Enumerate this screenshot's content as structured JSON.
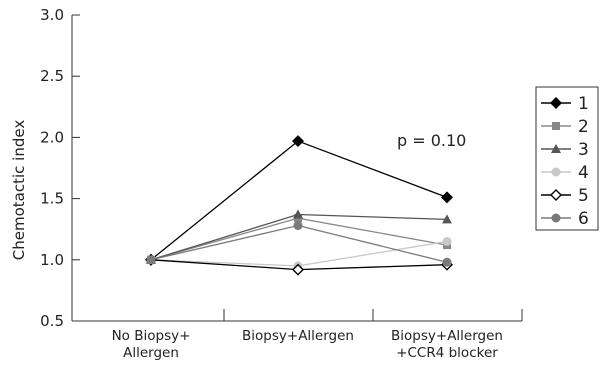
{
  "chart_data": {
    "type": "line",
    "ylabel": "Chemotactic index",
    "xlabel": "",
    "ylim": [
      0.5,
      3.0
    ],
    "yticks": [
      "0.5",
      "1.0",
      "1.5",
      "2.0",
      "2.5",
      "3.0"
    ],
    "categories": [
      [
        "No Biopsy+",
        "Allergen"
      ],
      [
        "Biopsy+Allergen"
      ],
      [
        "Biopsy+Allergen",
        "+CCR4 blocker"
      ]
    ],
    "annotation": "p = 0.10",
    "legend_position": "right",
    "series": [
      {
        "name": "1",
        "color": "#000000",
        "marker": "diamond-filled",
        "values": [
          1.0,
          1.97,
          1.51
        ]
      },
      {
        "name": "2",
        "color": "#888888",
        "marker": "square",
        "values": [
          1.0,
          1.34,
          1.12
        ]
      },
      {
        "name": "3",
        "color": "#555555",
        "marker": "triangle",
        "values": [
          1.0,
          1.37,
          1.33
        ]
      },
      {
        "name": "4",
        "color": "#c8c8c8",
        "marker": "circle",
        "values": [
          1.0,
          0.95,
          1.15
        ]
      },
      {
        "name": "5",
        "color": "#000000",
        "marker": "diamond-open",
        "values": [
          1.0,
          0.92,
          0.96
        ]
      },
      {
        "name": "6",
        "color": "#7a7a7a",
        "marker": "circle",
        "values": [
          1.0,
          1.28,
          0.98
        ]
      }
    ]
  }
}
